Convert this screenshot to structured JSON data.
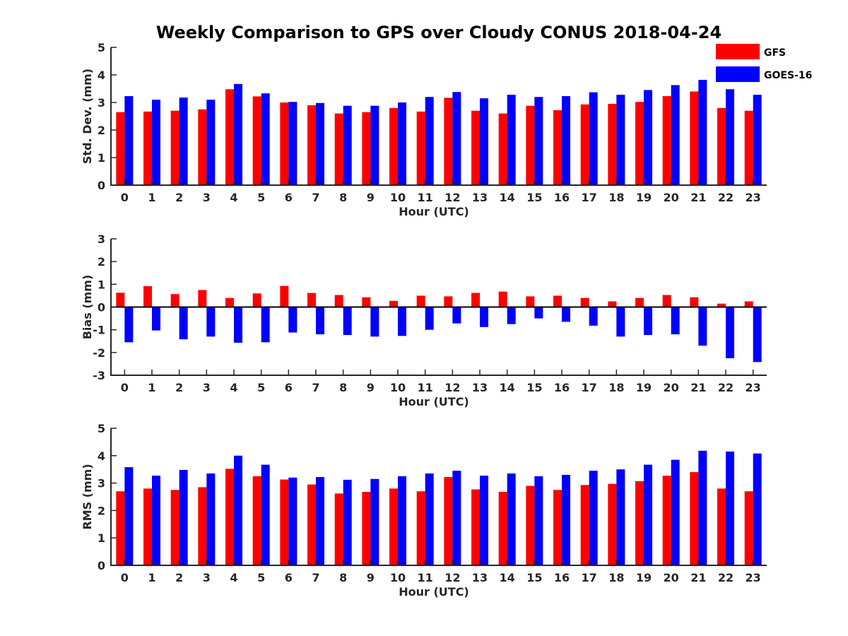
{
  "figure": {
    "title": "Weekly Comparison to GPS over Cloudy CONUS 2018-04-24"
  },
  "colors": {
    "GFS": "#ff0000",
    "GOES-16": "#0000ff"
  },
  "legend": {
    "placement": "top-right",
    "entries": [
      "GFS",
      "GOES-16"
    ]
  },
  "chart_data": [
    {
      "type": "bar",
      "xlabel": "Hour (UTC)",
      "ylabel": "Std. Dev. (mm)",
      "ylim": [
        0,
        5
      ],
      "yticks": [
        0,
        1,
        2,
        3,
        4,
        5
      ],
      "grid": false,
      "categories": [
        "0",
        "1",
        "2",
        "3",
        "4",
        "5",
        "6",
        "7",
        "8",
        "9",
        "10",
        "11",
        "12",
        "13",
        "14",
        "15",
        "16",
        "17",
        "18",
        "19",
        "20",
        "21",
        "22",
        "23"
      ],
      "series": [
        {
          "name": "GFS",
          "values": [
            2.65,
            2.67,
            2.7,
            2.75,
            3.48,
            3.22,
            3.0,
            2.9,
            2.6,
            2.65,
            2.8,
            2.67,
            3.17,
            2.7,
            2.6,
            2.88,
            2.72,
            2.93,
            2.95,
            3.02,
            3.23,
            3.4,
            2.8,
            2.7
          ]
        },
        {
          "name": "GOES-16",
          "values": [
            3.23,
            3.1,
            3.18,
            3.1,
            3.67,
            3.33,
            3.02,
            2.98,
            2.88,
            2.88,
            3.0,
            3.2,
            3.38,
            3.15,
            3.28,
            3.2,
            3.23,
            3.37,
            3.28,
            3.45,
            3.63,
            3.82,
            3.48,
            3.28
          ]
        }
      ]
    },
    {
      "type": "bar",
      "xlabel": "Hour (UTC)",
      "ylabel": "Bias (mm)",
      "ylim": [
        -3,
        3
      ],
      "yticks": [
        -3,
        -2,
        -1,
        0,
        1,
        2,
        3
      ],
      "grid": false,
      "categories": [
        "0",
        "1",
        "2",
        "3",
        "4",
        "5",
        "6",
        "7",
        "8",
        "9",
        "10",
        "11",
        "12",
        "13",
        "14",
        "15",
        "16",
        "17",
        "18",
        "19",
        "20",
        "21",
        "22",
        "23"
      ],
      "series": [
        {
          "name": "GFS",
          "values": [
            0.63,
            0.92,
            0.57,
            0.75,
            0.4,
            0.6,
            0.93,
            0.62,
            0.53,
            0.43,
            0.27,
            0.5,
            0.47,
            0.62,
            0.68,
            0.47,
            0.5,
            0.4,
            0.25,
            0.4,
            0.53,
            0.43,
            0.15,
            0.25
          ]
        },
        {
          "name": "GOES-16",
          "values": [
            -1.55,
            -1.03,
            -1.42,
            -1.3,
            -1.57,
            -1.55,
            -1.12,
            -1.2,
            -1.23,
            -1.3,
            -1.27,
            -1.0,
            -0.72,
            -0.88,
            -0.75,
            -0.5,
            -0.65,
            -0.82,
            -1.3,
            -1.23,
            -1.2,
            -1.7,
            -2.25,
            -2.42
          ]
        }
      ]
    },
    {
      "type": "bar",
      "xlabel": "Hour (UTC)",
      "ylabel": "RMS (mm)",
      "ylim": [
        0,
        5
      ],
      "yticks": [
        0,
        1,
        2,
        3,
        4,
        5
      ],
      "grid": false,
      "categories": [
        "0",
        "1",
        "2",
        "3",
        "4",
        "5",
        "6",
        "7",
        "8",
        "9",
        "10",
        "11",
        "12",
        "13",
        "14",
        "15",
        "16",
        "17",
        "18",
        "19",
        "20",
        "21",
        "22",
        "23"
      ],
      "series": [
        {
          "name": "GFS",
          "values": [
            2.7,
            2.8,
            2.75,
            2.85,
            3.52,
            3.25,
            3.13,
            2.95,
            2.62,
            2.68,
            2.8,
            2.7,
            3.22,
            2.77,
            2.68,
            2.9,
            2.75,
            2.93,
            2.97,
            3.07,
            3.27,
            3.4,
            2.8,
            2.7
          ]
        },
        {
          "name": "GOES-16",
          "values": [
            3.58,
            3.27,
            3.48,
            3.35,
            4.0,
            3.67,
            3.2,
            3.22,
            3.12,
            3.15,
            3.25,
            3.35,
            3.45,
            3.27,
            3.35,
            3.25,
            3.3,
            3.45,
            3.5,
            3.67,
            3.85,
            4.18,
            4.15,
            4.08
          ]
        }
      ]
    }
  ]
}
